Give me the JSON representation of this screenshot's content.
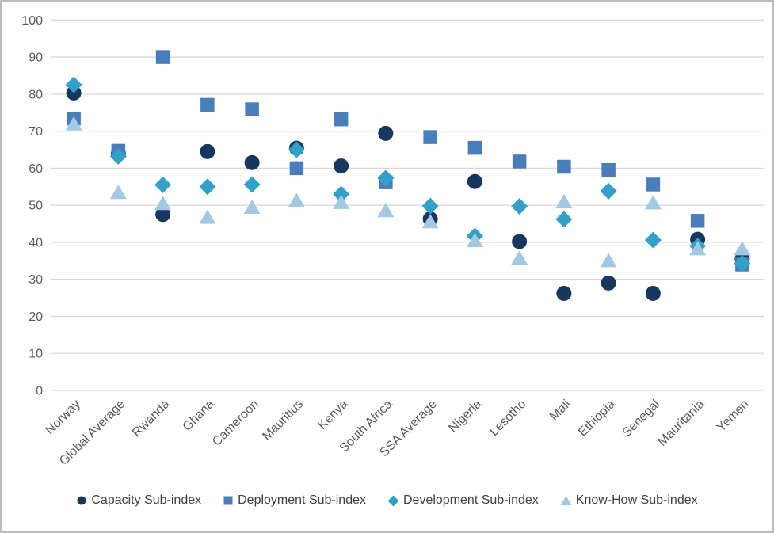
{
  "chart_data": {
    "type": "scatter",
    "title": "",
    "xlabel": "",
    "ylabel": "",
    "ylim": [
      0,
      100
    ],
    "ytick_step": 10,
    "y_tick_labels": [
      "0",
      "10",
      "20",
      "30",
      "40",
      "50",
      "60",
      "70",
      "80",
      "90",
      "100"
    ],
    "grid": true,
    "legend_position": "bottom",
    "categories": [
      "Norway",
      "Global Average",
      "Rwanda",
      "Ghana",
      "Cameroon",
      "Mauritius",
      "Kenya",
      "South Africa",
      "SSA Average",
      "Nigeria",
      "Lesotho",
      "Mali",
      "Ethiopia",
      "Senegal",
      "Mauritania",
      "Yemen"
    ],
    "series": [
      {
        "name": "Capacity Sub-index",
        "marker": "circle",
        "color": "#17375E",
        "values": [
          80.3,
          63.9,
          47.5,
          64.5,
          61.5,
          65.4,
          60.6,
          69.4,
          46.3,
          56.4,
          40.2,
          26.2,
          29.0,
          26.2,
          40.8,
          35.5
        ]
      },
      {
        "name": "Deployment Sub-index",
        "marker": "square",
        "color": "#4A7EBB",
        "values": [
          73.4,
          64.7,
          90.0,
          77.1,
          75.9,
          60.0,
          73.2,
          56.2,
          68.4,
          65.5,
          61.8,
          60.4,
          59.5,
          55.6,
          45.8,
          34.0
        ]
      },
      {
        "name": "Development Sub-index",
        "marker": "diamond",
        "color": "#32A0C8",
        "values": [
          82.5,
          63.2,
          55.5,
          55.0,
          55.6,
          65.0,
          53.0,
          57.3,
          49.8,
          41.7,
          49.7,
          46.2,
          53.8,
          40.6,
          39.0,
          34.3
        ]
      },
      {
        "name": "Know-How Sub-index",
        "marker": "triangle",
        "color": "#A3C8E4",
        "values": [
          72.0,
          53.5,
          50.5,
          46.8,
          49.5,
          51.3,
          50.8,
          48.6,
          45.6,
          40.5,
          35.8,
          51.0,
          35.1,
          50.7,
          38.3,
          38.3
        ]
      }
    ],
    "layout": {
      "gridline_color": "#D9D9D9",
      "tick_label_color": "#595959",
      "legend_text_color": "#404040",
      "background_color": "#FFFFFF",
      "border_color": "#BCBCBC",
      "x_label_rotation_deg": 45
    }
  }
}
